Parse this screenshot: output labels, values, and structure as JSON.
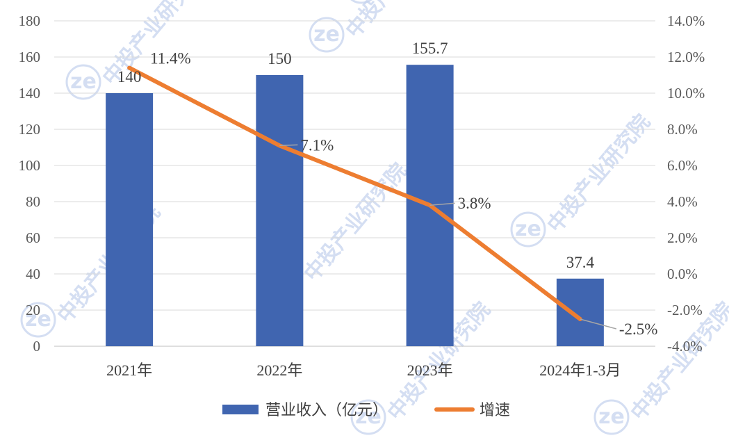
{
  "chart_data": {
    "type": "bar",
    "categories": [
      "2021年",
      "2022年",
      "2023年",
      "2024年1-3月"
    ],
    "series": [
      {
        "name": "营业收入（亿元）",
        "type": "bar",
        "axis": "left",
        "values": [
          140,
          150,
          155.7,
          37.4
        ],
        "labels": [
          "140",
          "150",
          "155.7",
          "37.4"
        ],
        "color": "#4065b0"
      },
      {
        "name": "增速",
        "type": "line",
        "axis": "right",
        "values": [
          11.4,
          7.1,
          3.8,
          -2.5
        ],
        "labels": [
          "11.4%",
          "7.1%",
          "3.8%",
          "-2.5%"
        ],
        "color": "#ed7d31"
      }
    ],
    "y_left": {
      "min": 0,
      "max": 180,
      "step": 20,
      "ticks": [
        "0",
        "20",
        "40",
        "60",
        "80",
        "100",
        "120",
        "140",
        "160",
        "180"
      ]
    },
    "y_right": {
      "min": -4,
      "max": 14,
      "step": 2,
      "ticks": [
        "-4.0%",
        "-2.0%",
        "0.0%",
        "2.0%",
        "4.0%",
        "6.0%",
        "8.0%",
        "10.0%",
        "12.0%",
        "14.0%"
      ]
    },
    "grid": true,
    "legend_position": "bottom",
    "title": "",
    "xlabel": "",
    "ylabel": ""
  },
  "watermark": {
    "text": "中投产业研究院",
    "color": "#c6d3ee"
  }
}
